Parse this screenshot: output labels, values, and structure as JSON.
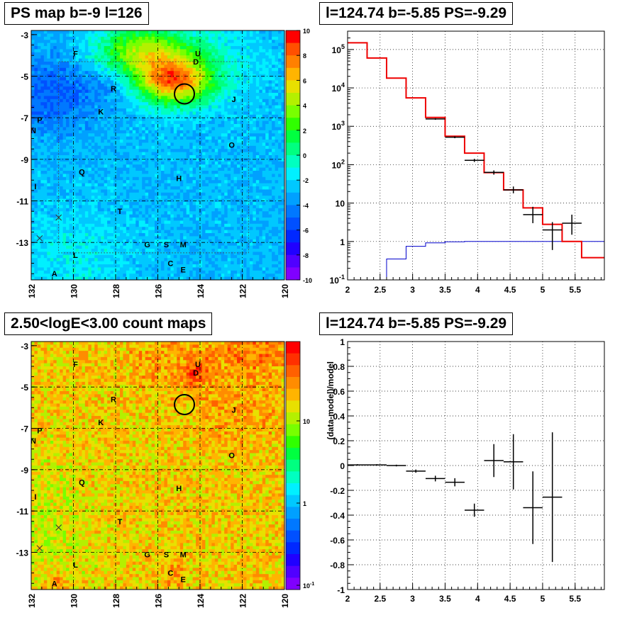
{
  "panels": {
    "tl_title": "PS map b=-9 l=126",
    "tr_title": "l=124.74 b=-5.85 PS=-9.29",
    "bl_title": "2.50<logE<3.00 count maps",
    "br_title": "l=124.74 b=-5.85 PS=-9.29"
  },
  "chart_data": [
    {
      "type": "heatmap",
      "title": "PS map b=-9 l=126",
      "xlim": [
        132,
        120
      ],
      "ylim": [
        -14.8,
        -2.8
      ],
      "xticks": [
        "132",
        "130",
        "128",
        "126",
        "124",
        "122",
        "120"
      ],
      "yticks": [
        "-3",
        "-5",
        "-7",
        "-9",
        "-11",
        "-13"
      ],
      "colorbar_ticks": [
        "10",
        "8",
        "6",
        "4",
        "2",
        "0",
        "-2",
        "-4",
        "-6",
        "-8",
        "-10"
      ],
      "colorbar_range": [
        -10,
        10
      ],
      "colorbar_colors": [
        "#ff0000",
        "#ff5000",
        "#ff8000",
        "#ffb400",
        "#e8e000",
        "#b4f000",
        "#78ff00",
        "#30ff00",
        "#00ff40",
        "#00ff80",
        "#00ffc0",
        "#00f0ff",
        "#00c8ff",
        "#00a0ff",
        "#0078ff",
        "#0050ff",
        "#0028ff",
        "#2000ff",
        "#5000ff",
        "#8000ff"
      ],
      "grid_x": [
        130,
        128,
        126,
        124,
        122
      ],
      "grid_y": [
        -5,
        -7,
        -9,
        -11,
        -13
      ],
      "circle": {
        "l": 124.74,
        "b": -5.85
      },
      "sources": [
        {
          "label": "F",
          "l": 129.9,
          "b": -3.9
        },
        {
          "label": "U",
          "l": 124.1,
          "b": -3.9
        },
        {
          "label": "D",
          "l": 124.2,
          "b": -4.3
        },
        {
          "label": "R",
          "l": 128.1,
          "b": -5.6
        },
        {
          "label": "J",
          "l": 122.4,
          "b": -6.1
        },
        {
          "label": "K",
          "l": 128.7,
          "b": -6.7
        },
        {
          "label": "P",
          "l": 131.6,
          "b": -7.1
        },
        {
          "label": "N",
          "l": 131.9,
          "b": -7.6
        },
        {
          "label": "O",
          "l": 122.5,
          "b": -8.3
        },
        {
          "label": "Q",
          "l": 129.6,
          "b": -9.6
        },
        {
          "label": "H",
          "l": 125.0,
          "b": -9.9
        },
        {
          "label": "I",
          "l": 131.8,
          "b": -10.3
        },
        {
          "label": "T",
          "l": 127.8,
          "b": -11.5
        },
        {
          "label": "G",
          "l": 126.5,
          "b": -13.1
        },
        {
          "label": "S",
          "l": 125.6,
          "b": -13.1
        },
        {
          "label": "M",
          "l": 124.8,
          "b": -13.1
        },
        {
          "label": "L",
          "l": 129.9,
          "b": -13.6
        },
        {
          "label": "C",
          "l": 125.4,
          "b": -14.0
        },
        {
          "label": "E",
          "l": 124.8,
          "b": -14.3
        },
        {
          "label": "A",
          "l": 130.9,
          "b": -14.5
        }
      ],
      "crosses": [
        {
          "l": 130.7,
          "b": -11.8
        },
        {
          "l": 131.6,
          "b": -12.8
        }
      ]
    },
    {
      "type": "line",
      "log_y": true,
      "xlim": [
        2,
        5.95
      ],
      "ylim": [
        0.1,
        300000
      ],
      "xticks": [
        "2",
        "2.5",
        "3",
        "3.5",
        "4",
        "4.5",
        "5",
        "5.5"
      ],
      "yticks": [
        "10^-1",
        "1",
        "10",
        "10^2",
        "10^3",
        "10^4",
        "10^5"
      ],
      "red_steps": [
        {
          "x0": 2.0,
          "x1": 2.3,
          "y": 150000
        },
        {
          "x0": 2.3,
          "x1": 2.6,
          "y": 60000
        },
        {
          "x0": 2.6,
          "x1": 2.9,
          "y": 18000
        },
        {
          "x0": 2.9,
          "x1": 3.2,
          "y": 5500
        },
        {
          "x0": 3.2,
          "x1": 3.5,
          "y": 1700
        },
        {
          "x0": 3.5,
          "x1": 3.8,
          "y": 550
        },
        {
          "x0": 3.8,
          "x1": 4.1,
          "y": 200
        },
        {
          "x0": 4.1,
          "x1": 4.4,
          "y": 62
        },
        {
          "x0": 4.4,
          "x1": 4.7,
          "y": 22
        },
        {
          "x0": 4.7,
          "x1": 5.0,
          "y": 7.5
        },
        {
          "x0": 5.0,
          "x1": 5.3,
          "y": 2.8
        },
        {
          "x0": 5.3,
          "x1": 5.6,
          "y": 1.0
        },
        {
          "x0": 5.6,
          "x1": 5.95,
          "y": 0.38
        }
      ],
      "blue_steps": [
        {
          "x0": 2.6,
          "x1": 2.9,
          "y": 0.35
        },
        {
          "x0": 2.9,
          "x1": 3.2,
          "y": 0.75
        },
        {
          "x0": 3.2,
          "x1": 3.5,
          "y": 0.92
        },
        {
          "x0": 3.5,
          "x1": 3.8,
          "y": 0.98
        },
        {
          "x0": 3.8,
          "x1": 5.95,
          "y": 1.0
        }
      ],
      "data_points": [
        {
          "x": 3.35,
          "y": 1550,
          "xerr": 0.15,
          "ylo": 1480,
          "yhi": 1620
        },
        {
          "x": 3.65,
          "y": 520,
          "xerr": 0.15,
          "ylo": 490,
          "yhi": 550
        },
        {
          "x": 3.95,
          "y": 130,
          "xerr": 0.15,
          "ylo": 118,
          "yhi": 142
        },
        {
          "x": 4.25,
          "y": 63,
          "xerr": 0.15,
          "ylo": 55,
          "yhi": 71
        },
        {
          "x": 4.55,
          "y": 22,
          "xerr": 0.15,
          "ylo": 18,
          "yhi": 27
        },
        {
          "x": 4.85,
          "y": 5.0,
          "xerr": 0.15,
          "ylo": 3.0,
          "yhi": 8.0
        },
        {
          "x": 5.15,
          "y": 2.0,
          "xerr": 0.15,
          "ylo": 0.6,
          "yhi": 3.2
        },
        {
          "x": 5.45,
          "y": 3.0,
          "xerr": 0.15,
          "ylo": 1.5,
          "yhi": 5.0
        }
      ]
    },
    {
      "type": "heatmap",
      "title": "2.50<logE<3.00 count maps",
      "xlim": [
        132,
        120
      ],
      "ylim": [
        -14.8,
        -2.8
      ],
      "xticks": [
        "132",
        "130",
        "128",
        "126",
        "124",
        "122",
        "120"
      ],
      "yticks": [
        "-3",
        "-5",
        "-7",
        "-9",
        "-11",
        "-13"
      ],
      "colorbar_ticks": [
        "10",
        "1",
        "10^-1"
      ],
      "colorbar_colors": [
        "#ff0000",
        "#ff3000",
        "#ff6000",
        "#ff8c00",
        "#ffb400",
        "#e8e000",
        "#b4f000",
        "#78ff00",
        "#30ff00",
        "#00ff40",
        "#00ff80",
        "#00ffc0",
        "#00f0ff",
        "#00c8ff",
        "#00a0ff",
        "#0078ff",
        "#0050ff",
        "#0028ff",
        "#2000ff",
        "#5000ff",
        "#8000ff"
      ]
    },
    {
      "type": "scatter",
      "ylabel": "(data-model)/model",
      "xlim": [
        2,
        5.95
      ],
      "ylim": [
        -1,
        1
      ],
      "xticks": [
        "2",
        "2.5",
        "3",
        "3.5",
        "4",
        "4.5",
        "5",
        "5.5"
      ],
      "yticks": [
        "1",
        "0.8",
        "0.6",
        "0.4",
        "0.2",
        "0",
        "-0.2",
        "-0.4",
        "-0.6",
        "-0.8",
        "-1"
      ],
      "points": [
        {
          "x": 2.15,
          "y": 0.005,
          "xerr": 0.15,
          "yerr": 0.003
        },
        {
          "x": 2.45,
          "y": 0.005,
          "xerr": 0.15,
          "yerr": 0.003
        },
        {
          "x": 2.75,
          "y": 0.0,
          "xerr": 0.15,
          "yerr": 0.004
        },
        {
          "x": 3.05,
          "y": -0.045,
          "xerr": 0.15,
          "yerr": 0.01
        },
        {
          "x": 3.35,
          "y": -0.105,
          "xerr": 0.15,
          "yerr": 0.02
        },
        {
          "x": 3.65,
          "y": -0.135,
          "xerr": 0.15,
          "yerr": 0.03
        },
        {
          "x": 3.95,
          "y": -0.36,
          "xerr": 0.15,
          "yerr": 0.05
        },
        {
          "x": 4.25,
          "y": 0.04,
          "xerr": 0.15,
          "yerr": 0.13
        },
        {
          "x": 4.55,
          "y": 0.03,
          "xerr": 0.15,
          "yerr": 0.22
        },
        {
          "x": 4.85,
          "y": -0.34,
          "xerr": 0.15,
          "yerr": 0.29
        },
        {
          "x": 5.15,
          "y": -0.255,
          "xerr": 0.15,
          "yerr": 0.52
        }
      ]
    }
  ]
}
